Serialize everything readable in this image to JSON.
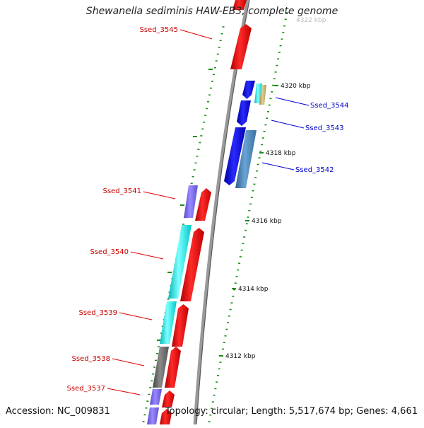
{
  "title": "Shewanella sediminis HAW-EB3, complete genome",
  "footer": {
    "accession": "Accession: NC_009831",
    "summary": "Topology: circular; Length: 5,517,674 bp; Genes: 4,661"
  },
  "kbp_labels": [
    {
      "text": "4322 kbp",
      "faded": true
    },
    {
      "text": "4320 kbp"
    },
    {
      "text": "4318 kbp"
    },
    {
      "text": "4316 kbp"
    },
    {
      "text": "4314 kbp"
    },
    {
      "text": "4312 kbp"
    }
  ],
  "gene_labels": [
    {
      "text": "Ssed_3545",
      "strand": "reverse"
    },
    {
      "text": "Ssed_3544",
      "strand": "forward"
    },
    {
      "text": "Ssed_3543",
      "strand": "forward"
    },
    {
      "text": "Ssed_3542",
      "strand": "forward"
    },
    {
      "text": "Ssed_3541",
      "strand": "reverse"
    },
    {
      "text": "Ssed_3540",
      "strand": "reverse"
    },
    {
      "text": "Ssed_3539",
      "strand": "reverse"
    },
    {
      "text": "Ssed_3538",
      "strand": "reverse"
    },
    {
      "text": "Ssed_3537",
      "strand": "reverse"
    }
  ],
  "colors": {
    "reverse_label": "#cc0000",
    "forward_label": "#0000cc",
    "cds_red": "#ff0000",
    "cds_blue": "#0000ee",
    "cds_cyan": "#00ffff",
    "cds_purple": "#7b68ee",
    "cds_steelblue": "#4682b4",
    "cds_gray": "#666666",
    "cds_tan": "#c8b878",
    "tick_green": "#1a8c1a",
    "backbone": "#888888"
  }
}
